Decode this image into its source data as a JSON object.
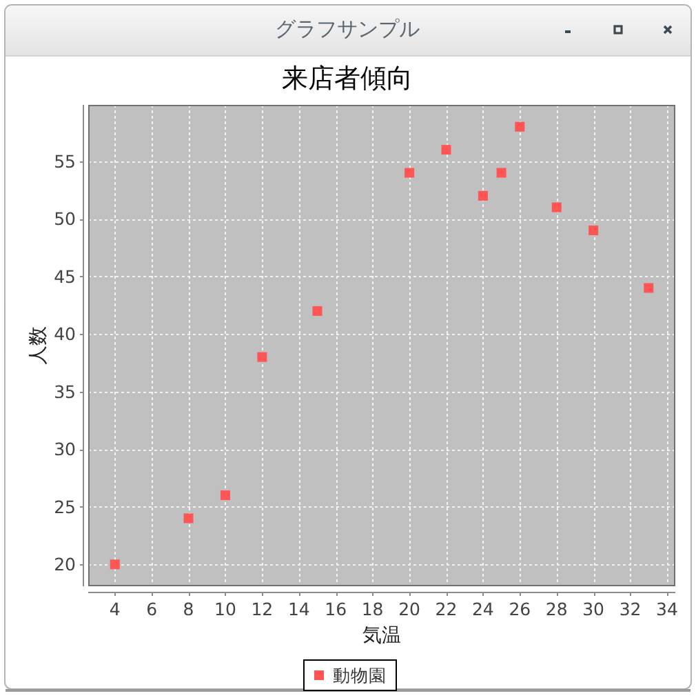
{
  "chart_data": {
    "type": "scatter",
    "title": "来店者傾向",
    "xlabel": "気温",
    "ylabel": "人数",
    "annotations": [
      "グラフサンプル"
    ],
    "x": [
      4,
      8,
      10,
      12,
      15,
      20,
      22,
      24,
      25,
      26,
      28,
      30,
      33
    ],
    "series": [
      {
        "name": "動物園",
        "color": "#ff5555",
        "values": [
          20,
          24,
          26,
          38,
          42,
          54,
          56,
          52,
          54,
          58,
          51,
          49,
          44
        ]
      }
    ],
    "xlim": [
      2.55,
      34.45
    ],
    "ylim": [
      18.1,
      59.9
    ],
    "xticks": [
      4,
      6,
      8,
      10,
      12,
      14,
      16,
      18,
      20,
      22,
      24,
      26,
      28,
      30,
      32,
      34
    ],
    "yticks": [
      20,
      25,
      30,
      35,
      40,
      45,
      50,
      55
    ],
    "grid": true,
    "legend": "bottom",
    "marker": "square"
  }
}
